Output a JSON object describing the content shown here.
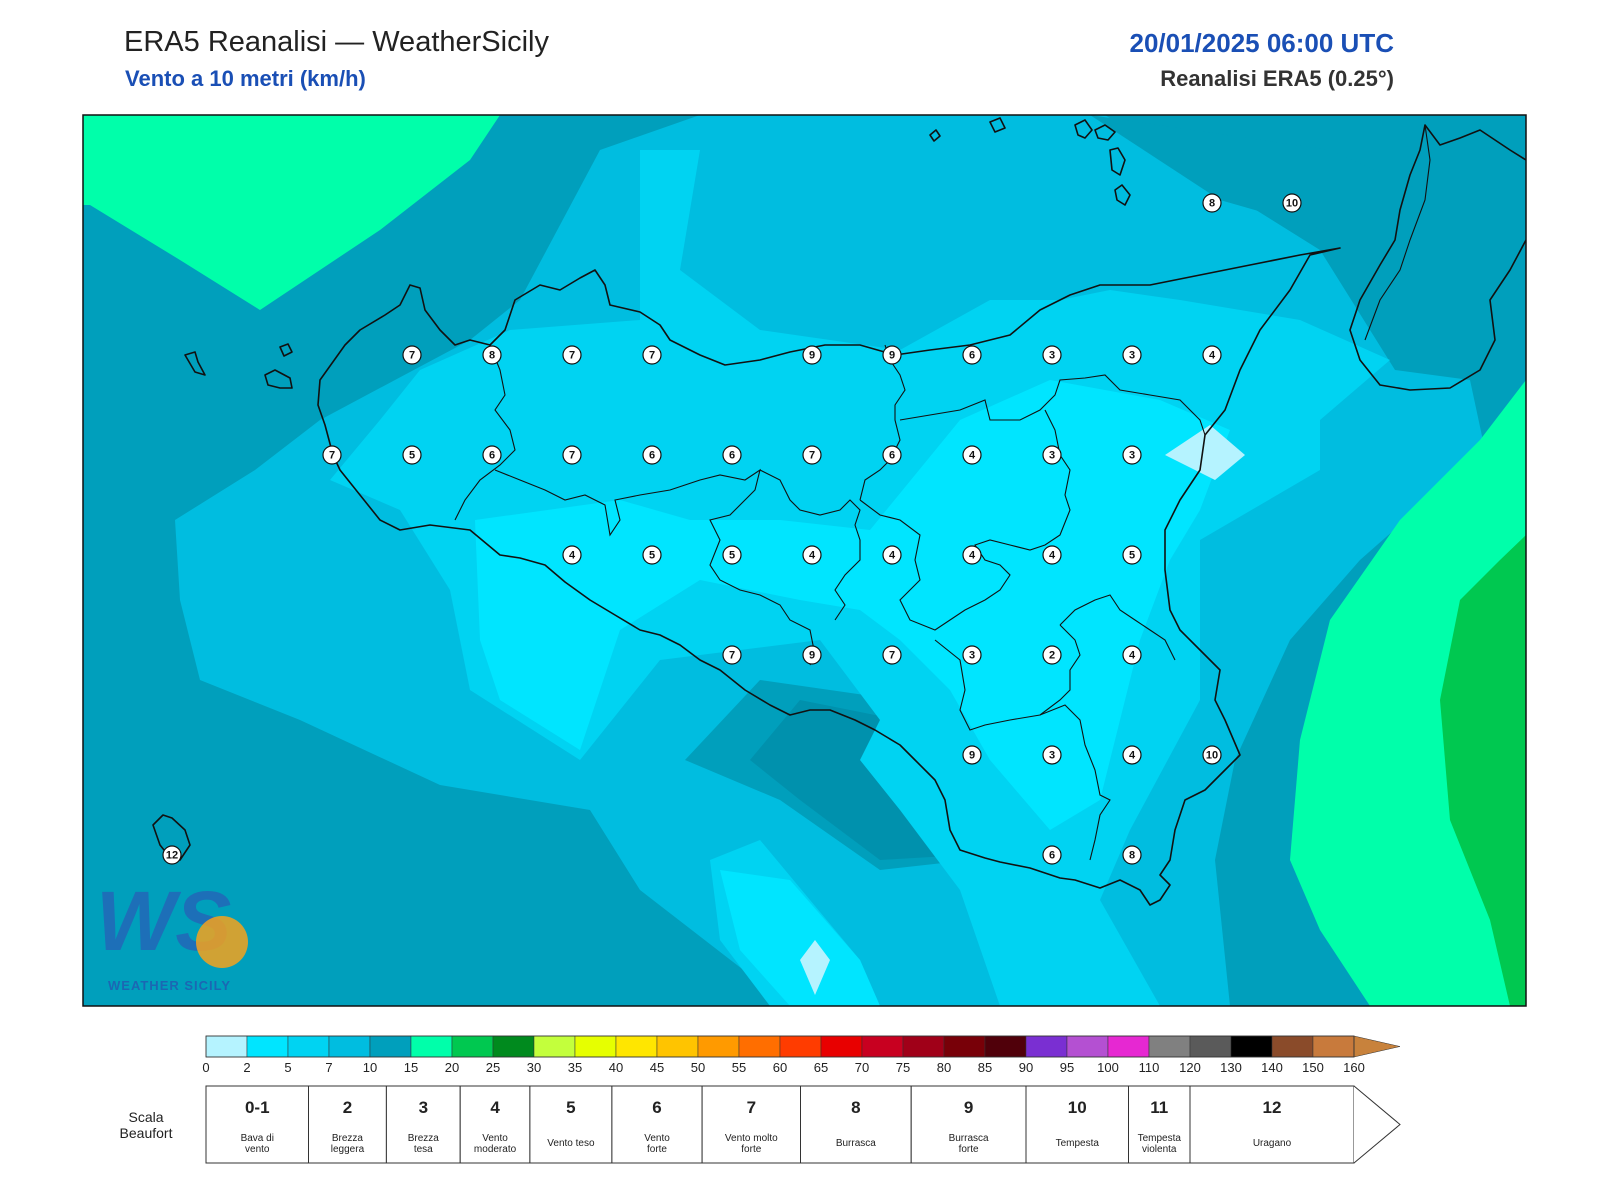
{
  "header": {
    "title": "ERA5 Reanalisi — WeatherSicily",
    "subtitle": "Vento a 10 metri (km/h)",
    "datetime": "20/01/2025 06:00 UTC",
    "source": "Reanalisi ERA5 (0.25°)"
  },
  "logo": {
    "text": "WEATHER SICILY",
    "letters": "WS"
  },
  "stations": [
    {
      "v": "8",
      "lon": 15.2,
      "lat": 38.48
    },
    {
      "v": "10",
      "lon": 15.45,
      "lat": 38.48
    },
    {
      "v": "7",
      "lon": 12.7,
      "lat": 38.1
    },
    {
      "v": "8",
      "lon": 12.95,
      "lat": 38.1
    },
    {
      "v": "7",
      "lon": 13.2,
      "lat": 38.1
    },
    {
      "v": "7",
      "lon": 13.45,
      "lat": 38.1
    },
    {
      "v": "9",
      "lon": 13.95,
      "lat": 38.1
    },
    {
      "v": "9",
      "lon": 14.2,
      "lat": 38.1
    },
    {
      "v": "6",
      "lon": 14.45,
      "lat": 38.1
    },
    {
      "v": "3",
      "lon": 14.7,
      "lat": 38.1
    },
    {
      "v": "3",
      "lon": 14.95,
      "lat": 38.1
    },
    {
      "v": "4",
      "lon": 15.2,
      "lat": 38.1
    },
    {
      "v": "7",
      "lon": 12.45,
      "lat": 37.85
    },
    {
      "v": "5",
      "lon": 12.7,
      "lat": 37.85
    },
    {
      "v": "6",
      "lon": 12.95,
      "lat": 37.85
    },
    {
      "v": "7",
      "lon": 13.2,
      "lat": 37.85
    },
    {
      "v": "6",
      "lon": 13.45,
      "lat": 37.85
    },
    {
      "v": "6",
      "lon": 13.7,
      "lat": 37.85
    },
    {
      "v": "7",
      "lon": 13.95,
      "lat": 37.85
    },
    {
      "v": "6",
      "lon": 14.2,
      "lat": 37.85
    },
    {
      "v": "4",
      "lon": 14.45,
      "lat": 37.85
    },
    {
      "v": "3",
      "lon": 14.7,
      "lat": 37.85
    },
    {
      "v": "3",
      "lon": 14.95,
      "lat": 37.85
    },
    {
      "v": "4",
      "lon": 13.2,
      "lat": 37.6
    },
    {
      "v": "5",
      "lon": 13.45,
      "lat": 37.6
    },
    {
      "v": "5",
      "lon": 13.7,
      "lat": 37.6
    },
    {
      "v": "4",
      "lon": 13.95,
      "lat": 37.6
    },
    {
      "v": "4",
      "lon": 14.2,
      "lat": 37.6
    },
    {
      "v": "4",
      "lon": 14.45,
      "lat": 37.6
    },
    {
      "v": "4",
      "lon": 14.7,
      "lat": 37.6
    },
    {
      "v": "5",
      "lon": 14.95,
      "lat": 37.6
    },
    {
      "v": "7",
      "lon": 13.7,
      "lat": 37.35
    },
    {
      "v": "9",
      "lon": 13.95,
      "lat": 37.35
    },
    {
      "v": "7",
      "lon": 14.2,
      "lat": 37.35
    },
    {
      "v": "3",
      "lon": 14.45,
      "lat": 37.35
    },
    {
      "v": "2",
      "lon": 14.7,
      "lat": 37.35
    },
    {
      "v": "4",
      "lon": 14.95,
      "lat": 37.35
    },
    {
      "v": "9",
      "lon": 14.45,
      "lat": 37.1
    },
    {
      "v": "3",
      "lon": 14.7,
      "lat": 37.1
    },
    {
      "v": "4",
      "lon": 14.95,
      "lat": 37.1
    },
    {
      "v": "10",
      "lon": 15.2,
      "lat": 37.1
    },
    {
      "v": "6",
      "lon": 14.7,
      "lat": 36.85
    },
    {
      "v": "8",
      "lon": 14.95,
      "lat": 36.85
    },
    {
      "v": "12",
      "lon": 11.95,
      "lat": 36.85
    }
  ],
  "scale": {
    "colors": [
      "#b5f3ff",
      "#00e5ff",
      "#00d3f2",
      "#00bde0",
      "#009fbc",
      "#00ffaa",
      "#00c850",
      "#008a1e",
      "#c3ff3c",
      "#e6ff00",
      "#ffe600",
      "#ffc400",
      "#ff9a00",
      "#ff6e00",
      "#ff3c00",
      "#e80000",
      "#c80020",
      "#a00018",
      "#780008",
      "#50000a",
      "#7a2fd2",
      "#b450d2",
      "#e628d2",
      "#808080",
      "#5a5a5a",
      "#000000",
      "#8a4b2a",
      "#c87a3c"
    ],
    "tail_color": "#c8823c",
    "ticks": [
      "0",
      "2",
      "5",
      "7",
      "10",
      "15",
      "20",
      "25",
      "30",
      "35",
      "40",
      "45",
      "50",
      "55",
      "60",
      "65",
      "70",
      "75",
      "80",
      "85",
      "90",
      "95",
      "100",
      "110",
      "120",
      "130",
      "140",
      "150",
      "160"
    ]
  },
  "beaufort": {
    "label_line1": "Scala",
    "label_line2": "Beaufort",
    "items": [
      {
        "num": "0-1",
        "desc": [
          "Bava di",
          "vento"
        ]
      },
      {
        "num": "2",
        "desc": [
          "Brezza",
          "leggera"
        ]
      },
      {
        "num": "3",
        "desc": [
          "Brezza",
          "tesa"
        ]
      },
      {
        "num": "4",
        "desc": [
          "Vento",
          "moderato"
        ]
      },
      {
        "num": "5",
        "desc": [
          "Vento teso"
        ]
      },
      {
        "num": "6",
        "desc": [
          "Vento",
          "forte"
        ]
      },
      {
        "num": "7",
        "desc": [
          "Vento molto",
          "forte"
        ]
      },
      {
        "num": "8",
        "desc": [
          "Burrasca"
        ]
      },
      {
        "num": "9",
        "desc": [
          "Burrasca",
          "forte"
        ]
      },
      {
        "num": "10",
        "desc": [
          "Tempesta"
        ]
      },
      {
        "num": "11",
        "desc": [
          "Tempesta",
          "violenta"
        ]
      },
      {
        "num": "12",
        "desc": [
          "Uragano"
        ]
      }
    ]
  }
}
